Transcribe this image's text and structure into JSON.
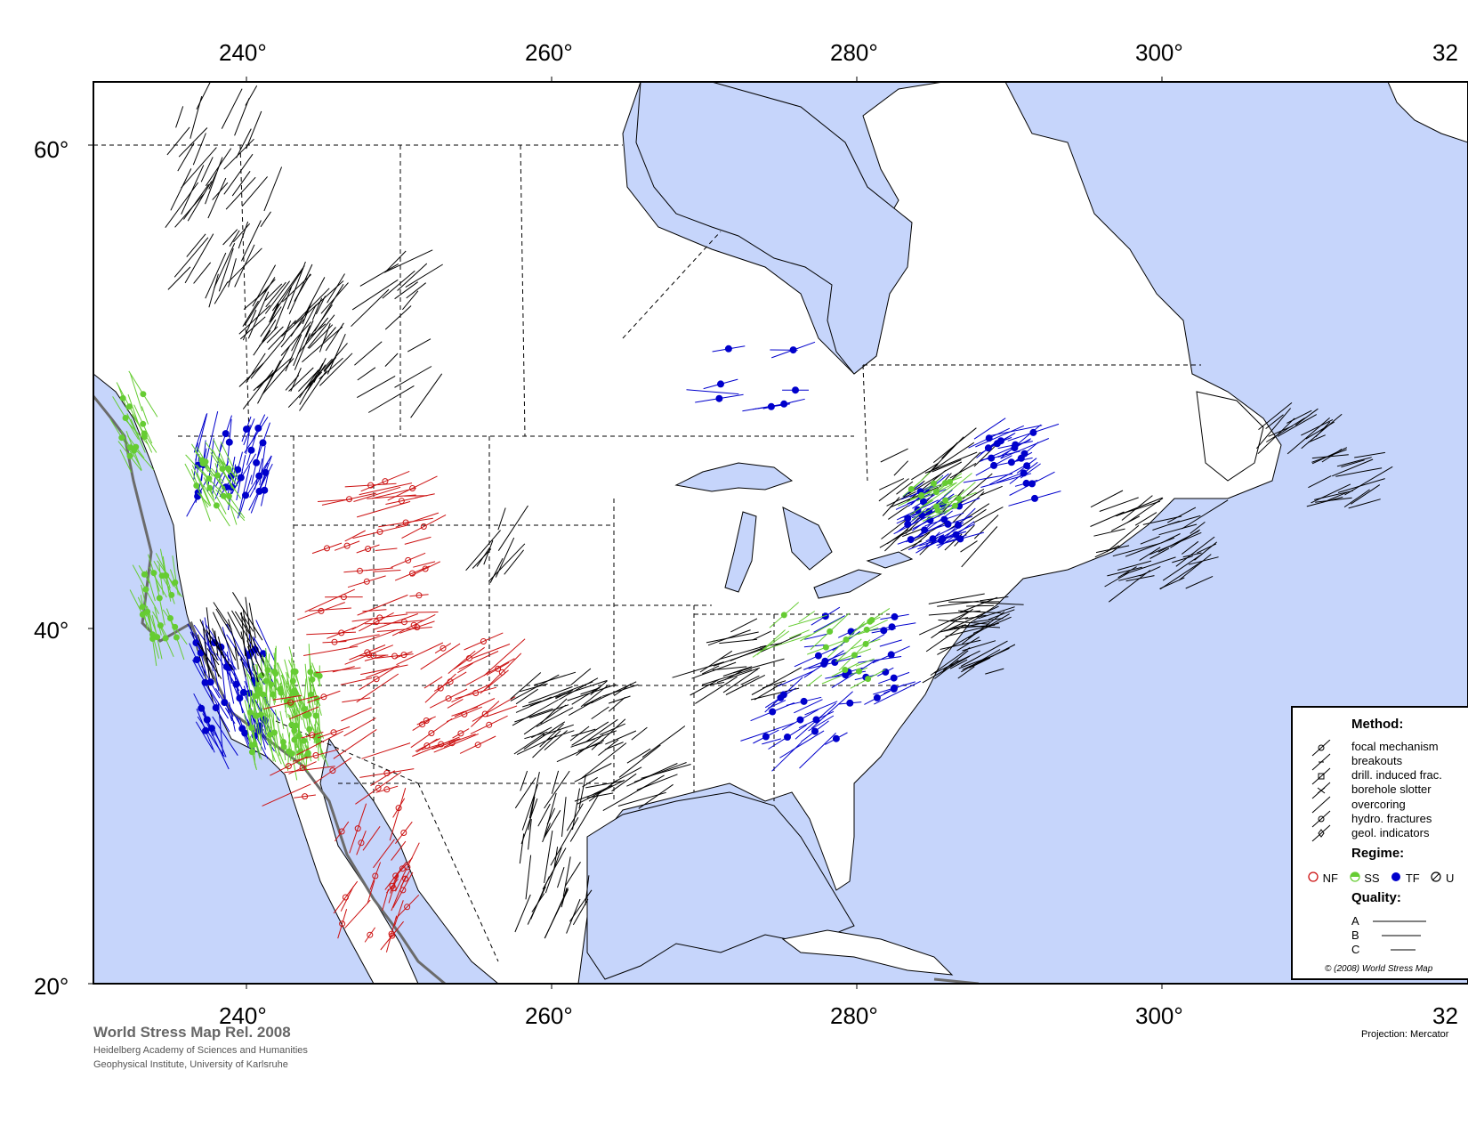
{
  "map": {
    "projection": "Mercator",
    "lon_range": [
      230,
      320
    ],
    "lat_range": [
      20,
      63
    ],
    "lon_ticks": [
      "240°",
      "260°",
      "280°",
      "300°",
      "32"
    ],
    "lat_ticks": [
      "60°",
      "40°",
      "20°"
    ],
    "colors": {
      "water": "#c6d5fb",
      "land": "#ffffff",
      "plate_boundary": "#6b6b6b",
      "nf": "#cc1111",
      "ss": "#66cc33",
      "tf": "#0000cc",
      "u": "#000000"
    }
  },
  "legend": {
    "method_title": "Method:",
    "methods": [
      "focal mechanism",
      "breakouts",
      "drill. induced frac.",
      "borehole slotter",
      "overcoring",
      "hydro. fractures",
      "geol. indicators"
    ],
    "regime_title": "Regime:",
    "regimes": [
      {
        "label": "NF",
        "color": "#cc1111",
        "icon": "open-circle"
      },
      {
        "label": "SS",
        "color": "#66cc33",
        "icon": "half-filled-circle"
      },
      {
        "label": "TF",
        "color": "#0000cc",
        "icon": "filled-circle"
      },
      {
        "label": "U",
        "color": "#000000",
        "icon": "slashed-circle"
      }
    ],
    "quality_title": "Quality:",
    "qualities": [
      "A",
      "B",
      "C"
    ],
    "copyright": "© (2008) World Stress Map"
  },
  "credits": {
    "title": "World Stress Map Rel. 2008",
    "line1": "Heidelberg Academy of Sciences and Humanities",
    "line2": "Geophysical Institute, University of Karlsruhe"
  },
  "projection_label": "Projection: Mercator"
}
